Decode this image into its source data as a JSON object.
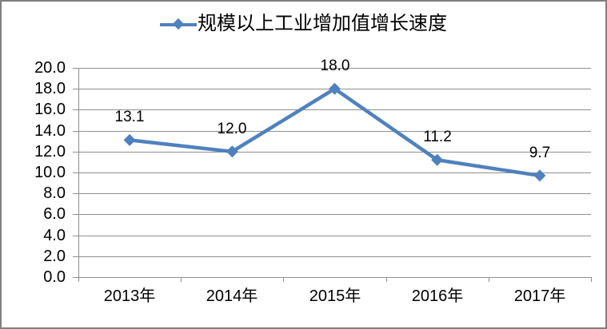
{
  "figure": {
    "background": "#FFFFFF",
    "border_color": "#808080",
    "text_color": "#000000"
  },
  "legend": {
    "label": "规模以上工业增加值增长速度",
    "marker": "line-with-diamond",
    "position": "top-center"
  },
  "chart_data": {
    "type": "line",
    "title": "",
    "xlabel": "",
    "ylabel": "",
    "categories": [
      "2013年",
      "2014年",
      "2015年",
      "2016年",
      "2017年"
    ],
    "series": [
      {
        "name": "规模以上工业增加值增长速度",
        "values": [
          13.1,
          12.0,
          18.0,
          11.2,
          9.7
        ],
        "data_labels": [
          "13.1",
          "12.0",
          "18.0",
          "11.2",
          "9.7"
        ],
        "line_color": "#4F81BD",
        "marker": "diamond"
      }
    ],
    "ylim": [
      0,
      20
    ],
    "ytick_step": 2,
    "ytick_labels_top_down": [
      "20.0",
      "18.0",
      "16.0",
      "14.0",
      "12.0",
      "10.0",
      "8.0",
      "6.0",
      "4.0",
      "2.0",
      "0.0"
    ],
    "grid": true,
    "gridline_color": "#8F8F8F",
    "axis_color": "#8F8F8F",
    "legend_position": "top"
  }
}
